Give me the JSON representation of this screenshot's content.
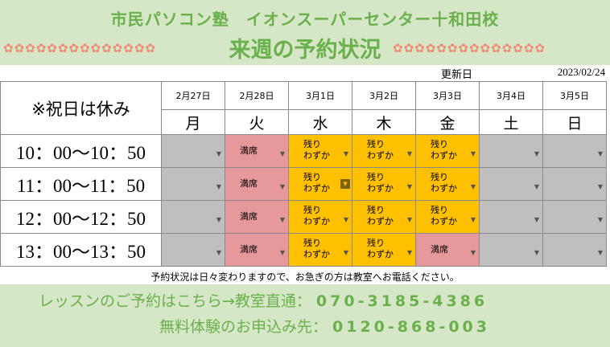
{
  "header": {
    "school_name": "市民パソコン塾　イオンスーパーセンター十和田校",
    "title": "来週の予約状況",
    "flowers_left": "✿✿✿✿✿✿✿✿✿✿✿✿✿✿",
    "flowers_right": "✿✿✿✿✿✿✿✿✿✿✿✿✿✿"
  },
  "updated": {
    "label": "更新日",
    "date": "2023/02/24"
  },
  "note": "※祝日は休み",
  "days": [
    {
      "date": "2月27日",
      "dow": "月"
    },
    {
      "date": "2月28日",
      "dow": "火"
    },
    {
      "date": "3月1日",
      "dow": "水"
    },
    {
      "date": "3月2日",
      "dow": "木"
    },
    {
      "date": "3月3日",
      "dow": "金"
    },
    {
      "date": "3月4日",
      "dow": "土"
    },
    {
      "date": "3月5日",
      "dow": "日"
    }
  ],
  "rows": [
    {
      "time": "10：00〜10：50",
      "slots": [
        "",
        "満席",
        "残り\nわずか",
        "残り\nわずか",
        "残り\nわずか",
        "",
        ""
      ]
    },
    {
      "time": "11：00〜11：50",
      "slots": [
        "",
        "満席",
        "残り\nわずか",
        "残り\nわずか",
        "残り\nわずか",
        "",
        ""
      ]
    },
    {
      "time": "12：00〜12：50",
      "slots": [
        "",
        "満席",
        "残り\nわずか",
        "残り\nわずか",
        "残り\nわずか",
        "",
        ""
      ]
    },
    {
      "time": "13：00〜13：50",
      "slots": [
        "",
        "満席",
        "残り\nわずか",
        "残り\nわずか",
        "満席",
        "",
        ""
      ]
    }
  ],
  "colors": {
    "closed": "#bfbfbf",
    "full": "#e6989a",
    "few": "#ffc000",
    "brand_green": "#6ab04c",
    "band_bg": "#d6e7c7"
  },
  "footnote": "予約状況は日々変わりますので、お急ぎの方は教室へお電話ください。",
  "footer": {
    "lesson_label": "レッスンのご予約はこちら→教室直通：",
    "lesson_phone": "070-3185-4386",
    "trial_label": "無料体験のお申込み先：",
    "trial_phone": "0120-868-003"
  }
}
